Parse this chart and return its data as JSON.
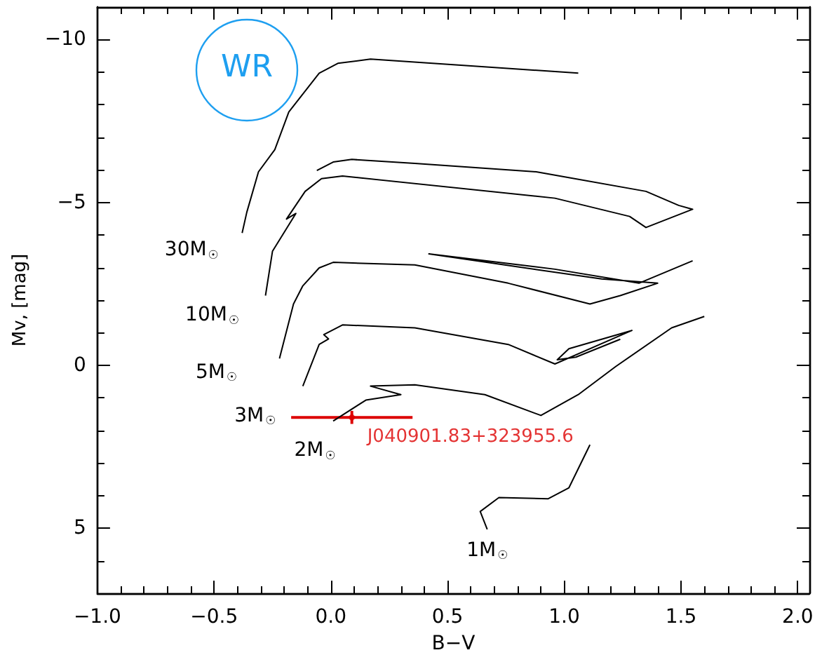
{
  "chart_data": {
    "type": "line",
    "xlabel": "B−V",
    "ylabel": "Mv, [mag]",
    "xlim": [
      -1,
      2.05
    ],
    "ylim": [
      7,
      -11
    ],
    "xticks": [
      {
        "value": -1,
        "label": "−1.0"
      },
      {
        "value": -0.9,
        "label": null
      },
      {
        "value": -0.8,
        "label": null
      },
      {
        "value": -0.7,
        "label": null
      },
      {
        "value": -0.6,
        "label": null
      },
      {
        "value": -0.5,
        "label": "−0.5"
      },
      {
        "value": -0.4,
        "label": null
      },
      {
        "value": -0.3,
        "label": null
      },
      {
        "value": -0.2,
        "label": null
      },
      {
        "value": -0.1,
        "label": null
      },
      {
        "value": 0,
        "label": "0.0"
      },
      {
        "value": 0.1,
        "label": null
      },
      {
        "value": 0.2,
        "label": null
      },
      {
        "value": 0.3,
        "label": null
      },
      {
        "value": 0.4,
        "label": null
      },
      {
        "value": 0.5,
        "label": "0.5"
      },
      {
        "value": 0.6,
        "label": null
      },
      {
        "value": 0.7,
        "label": null
      },
      {
        "value": 0.8,
        "label": null
      },
      {
        "value": 0.9,
        "label": null
      },
      {
        "value": 1,
        "label": "1.0"
      },
      {
        "value": 1.1,
        "label": null
      },
      {
        "value": 1.2,
        "label": null
      },
      {
        "value": 1.3,
        "label": null
      },
      {
        "value": 1.4,
        "label": null
      },
      {
        "value": 1.5,
        "label": "1.5"
      },
      {
        "value": 1.6,
        "label": null
      },
      {
        "value": 1.7,
        "label": null
      },
      {
        "value": 1.8,
        "label": null
      },
      {
        "value": 1.9,
        "label": null
      },
      {
        "value": 2,
        "label": "2.0"
      }
    ],
    "yticks": [
      {
        "value": -11,
        "label": null
      },
      {
        "value": -10,
        "label": "−10"
      },
      {
        "value": -9,
        "label": null
      },
      {
        "value": -8,
        "label": null
      },
      {
        "value": -7,
        "label": null
      },
      {
        "value": -6,
        "label": null
      },
      {
        "value": -5,
        "label": "−5"
      },
      {
        "value": -4,
        "label": null
      },
      {
        "value": -3,
        "label": null
      },
      {
        "value": -2,
        "label": null
      },
      {
        "value": -1,
        "label": null
      },
      0,
      {
        "value": 1,
        "label": null
      },
      {
        "value": 2,
        "label": null
      },
      {
        "value": 3,
        "label": null
      },
      {
        "value": 4,
        "label": null
      },
      5,
      {
        "value": 6,
        "label": null
      },
      {
        "value": 7,
        "label": null
      }
    ],
    "legend": false,
    "grid": false,
    "series": [
      {
        "name": "30M$_{☉}$",
        "color": "#000000",
        "x": [
          -0.38,
          -0.36,
          -0.31,
          -0.24,
          -0.18,
          -0.05,
          0.03,
          0.17,
          1.06
        ],
        "values": [
          -4.06,
          -4.7,
          -5.94,
          -6.62,
          -7.78,
          -8.97,
          -9.27,
          -9.4,
          -8.97
        ]
      },
      {
        "name": "10M$_{☉}$",
        "color": "#000000",
        "x": [
          -0.28,
          -0.25,
          -0.15,
          -0.19,
          -0.11,
          -0.04,
          0.05,
          0.96,
          1.28,
          1.35,
          1.55,
          1.49,
          1.35,
          0.88,
          0.36,
          0.09,
          0.01,
          -0.06
        ],
        "values": [
          -2.14,
          -3.5,
          -4.66,
          -4.49,
          -5.34,
          -5.73,
          -5.81,
          -5.13,
          -4.57,
          -4.23,
          -4.79,
          -4.91,
          -5.34,
          -5.94,
          -6.2,
          -6.32,
          -6.24,
          -5.98
        ]
      },
      {
        "name": "5M$_{☉}$",
        "color": "#000000",
        "x": [
          -0.22,
          -0.16,
          -0.12,
          -0.05,
          0.01,
          0.36,
          0.76,
          1.11,
          1.24,
          1.4,
          1.16,
          0.42,
          0.96,
          1.32,
          1.55
        ],
        "values": [
          -0.21,
          -1.88,
          -2.44,
          -2.99,
          -3.16,
          -3.08,
          -2.52,
          -1.88,
          -2.14,
          -2.52,
          -2.65,
          -3.42,
          -2.95,
          -2.52,
          -3.21
        ]
      },
      {
        "name": "3M$_{☉}$",
        "color": "#000000",
        "x": [
          -0.12,
          -0.05,
          -0.01,
          -0.03,
          0.05,
          0.36,
          0.76,
          0.96,
          1.29,
          1.02,
          0.97,
          1.05,
          1.24
        ],
        "values": [
          0.64,
          -0.64,
          -0.81,
          -0.94,
          -1.24,
          -1.15,
          -0.64,
          -0.04,
          -1.07,
          -0.51,
          -0.17,
          -0.25,
          -0.8
        ]
      },
      {
        "name": "2M$_{☉}$",
        "color": "#000000",
        "x": [
          0.01,
          0.15,
          0.3,
          0.17,
          0.36,
          0.66,
          0.9,
          1.06,
          1.22,
          1.46,
          1.6
        ],
        "values": [
          1.71,
          1.07,
          0.9,
          0.64,
          0.6,
          0.9,
          1.54,
          0.9,
          0.04,
          -1.15,
          -1.5
        ]
      },
      {
        "name": "1M$_{☉}$",
        "color": "#000000",
        "x": [
          1.11,
          1.02,
          0.93,
          0.72,
          0.64,
          0.67
        ],
        "values": [
          2.44,
          3.76,
          4.1,
          4.06,
          4.49,
          5.04
        ]
      },
      {
        "type": "scatter",
        "name": "J040901.83+323955.6",
        "color": "#dd0000",
        "marker": "diamond",
        "x": [
          0.09
        ],
        "values": [
          1.6
        ],
        "errors": [
          0.2
        ],
        "xerrors": [
          [
            -0.17,
            0.35
          ]
        ]
      }
    ],
    "annotations": [
      "WR"
    ]
  }
}
